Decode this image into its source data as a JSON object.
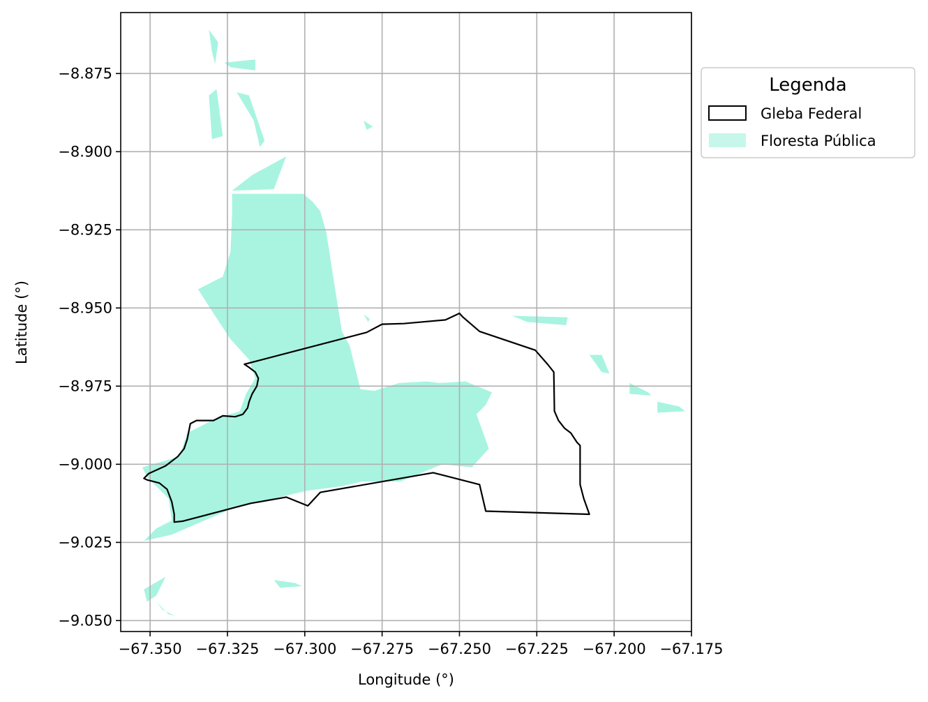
{
  "chart_data": {
    "type": "map",
    "xlabel": "Longitude (°)",
    "ylabel": "Latitude (°)",
    "xlim": [
      -67.3595,
      -67.175
    ],
    "ylim": [
      -9.0535,
      -8.8555
    ],
    "xticks": [
      -67.35,
      -67.325,
      -67.3,
      -67.275,
      -67.25,
      -67.225,
      -67.2,
      -67.175
    ],
    "xtick_labels": [
      "−67.350",
      "−67.325",
      "−67.300",
      "−67.275",
      "−67.250",
      "−67.225",
      "−67.200",
      "−67.175"
    ],
    "yticks": [
      -8.875,
      -8.9,
      -8.925,
      -8.95,
      -8.975,
      -9.0,
      -9.025,
      -9.05
    ],
    "ytick_labels": [
      "−8.875",
      "−8.900",
      "−8.925",
      "−8.950",
      "−8.975",
      "−9.000",
      "−9.025",
      "−9.050"
    ],
    "grid": true,
    "legend": {
      "title": "Legenda",
      "placement": "outside-top-right",
      "items": [
        {
          "label": "Gleba Federal",
          "style": "outline",
          "color": "#000000"
        },
        {
          "label": "Floresta Pública",
          "style": "fill",
          "color": "#a8f4e0"
        }
      ]
    },
    "colors": {
      "forest": "#a8f4e0",
      "forest_legend": "#c7f7ea",
      "boundary": "#000000"
    },
    "layers": {
      "gleba_federal": [
        [
          -67.3295,
          -8.986
        ],
        [
          -67.3265,
          -8.9845
        ],
        [
          -67.3225,
          -8.9848
        ],
        [
          -67.32,
          -8.984
        ],
        [
          -67.3185,
          -8.982
        ],
        [
          -67.318,
          -8.98
        ],
        [
          -67.317,
          -8.9775
        ],
        [
          -67.3155,
          -8.975
        ],
        [
          -67.315,
          -8.9725
        ],
        [
          -67.316,
          -8.9705
        ],
        [
          -67.318,
          -8.969
        ],
        [
          -67.3195,
          -8.968
        ],
        [
          -67.28,
          -8.9578
        ],
        [
          -67.275,
          -8.9552
        ],
        [
          -67.268,
          -8.955
        ],
        [
          -67.2545,
          -8.9538
        ],
        [
          -67.25,
          -8.9517
        ],
        [
          -67.249,
          -8.9528
        ],
        [
          -67.2435,
          -8.9575
        ],
        [
          -67.2255,
          -8.9635
        ],
        [
          -67.2215,
          -8.968
        ],
        [
          -67.2195,
          -8.9705
        ],
        [
          -67.2193,
          -8.983
        ],
        [
          -67.218,
          -8.986
        ],
        [
          -67.216,
          -8.9885
        ],
        [
          -67.214,
          -8.99
        ],
        [
          -67.212,
          -8.993
        ],
        [
          -67.211,
          -8.994
        ],
        [
          -67.211,
          -9.0065
        ],
        [
          -67.2098,
          -9.011
        ],
        [
          -67.208,
          -9.016
        ],
        [
          -67.2415,
          -9.015
        ],
        [
          -67.2435,
          -9.0065
        ],
        [
          -67.2585,
          -9.0027
        ],
        [
          -67.295,
          -9.009
        ],
        [
          -67.299,
          -9.0133
        ],
        [
          -67.306,
          -9.0105
        ],
        [
          -67.3175,
          -9.0125
        ],
        [
          -67.3395,
          -9.0182
        ],
        [
          -67.3422,
          -9.0185
        ],
        [
          -67.3422,
          -9.016
        ],
        [
          -67.343,
          -9.012
        ],
        [
          -67.3445,
          -9.008
        ],
        [
          -67.347,
          -9.006
        ],
        [
          -67.351,
          -9.005
        ],
        [
          -67.352,
          -9.0045
        ],
        [
          -67.3505,
          -9.003
        ],
        [
          -67.345,
          -9.0005
        ],
        [
          -67.341,
          -8.9975
        ],
        [
          -67.339,
          -8.995
        ],
        [
          -67.338,
          -8.992
        ],
        [
          -67.337,
          -8.987
        ],
        [
          -67.335,
          -8.986
        ]
      ],
      "floresta_publica": [
        [
          [
            -67.3235,
            -8.9135
          ],
          [
            -67.3005,
            -8.9135
          ],
          [
            -67.2975,
            -8.916
          ],
          [
            -67.295,
            -8.919
          ],
          [
            -67.293,
            -8.926
          ],
          [
            -67.2905,
            -8.942
          ],
          [
            -67.288,
            -8.9575
          ],
          [
            -67.2855,
            -8.962
          ],
          [
            -67.284,
            -8.968
          ],
          [
            -67.282,
            -8.976
          ],
          [
            -67.2775,
            -8.9765
          ],
          [
            -67.2695,
            -8.974
          ],
          [
            -67.2605,
            -8.9735
          ],
          [
            -67.2565,
            -8.974
          ],
          [
            -67.248,
            -8.9735
          ],
          [
            -67.2395,
            -8.977
          ],
          [
            -67.2415,
            -8.981
          ],
          [
            -67.2445,
            -8.984
          ],
          [
            -67.2405,
            -8.995
          ],
          [
            -67.246,
            -9.001
          ],
          [
            -67.2555,
            -9.0
          ],
          [
            -67.269,
            -9.0055
          ],
          [
            -67.2815,
            -9.0055
          ],
          [
            -67.288,
            -9.007
          ],
          [
            -67.2995,
            -9.0085
          ],
          [
            -67.308,
            -9.0105
          ],
          [
            -67.323,
            -9.014
          ],
          [
            -67.343,
            -9.0225
          ],
          [
            -67.352,
            -9.0245
          ],
          [
            -67.348,
            -9.0205
          ],
          [
            -67.343,
            -9.018
          ],
          [
            -67.344,
            -9.011
          ],
          [
            -67.351,
            -9.004
          ],
          [
            -67.3525,
            -9.001
          ],
          [
            -67.3405,
            -8.9975
          ],
          [
            -67.338,
            -8.99
          ],
          [
            -67.329,
            -8.9855
          ],
          [
            -67.321,
            -8.983
          ],
          [
            -67.319,
            -8.9775
          ],
          [
            -67.316,
            -8.9725
          ],
          [
            -67.318,
            -8.9665
          ],
          [
            -67.324,
            -8.96
          ],
          [
            -67.329,
            -8.9525
          ],
          [
            -67.3345,
            -8.944
          ],
          [
            -67.3265,
            -8.94
          ],
          [
            -67.324,
            -8.932
          ],
          [
            -67.3235,
            -8.92
          ]
        ],
        [
          [
            -67.3235,
            -8.9125
          ],
          [
            -67.317,
            -8.9075
          ],
          [
            -67.306,
            -8.9015
          ],
          [
            -67.31,
            -8.912
          ]
        ],
        [
          [
            -67.331,
            -8.882
          ],
          [
            -67.3285,
            -8.88
          ],
          [
            -67.3265,
            -8.895
          ],
          [
            -67.33,
            -8.896
          ]
        ],
        [
          [
            -67.322,
            -8.881
          ],
          [
            -67.318,
            -8.882
          ],
          [
            -67.313,
            -8.8965
          ],
          [
            -67.3145,
            -8.8985
          ],
          [
            -67.3165,
            -8.89
          ]
        ],
        [
          [
            -67.326,
            -8.8715
          ],
          [
            -67.324,
            -8.873
          ],
          [
            -67.316,
            -8.874
          ],
          [
            -67.316,
            -8.8705
          ]
        ],
        [
          [
            -67.331,
            -8.861
          ],
          [
            -67.328,
            -8.865
          ],
          [
            -67.329,
            -8.872
          ],
          [
            -67.33,
            -8.868
          ]
        ],
        [
          [
            -67.281,
            -8.89
          ],
          [
            -67.278,
            -8.892
          ],
          [
            -67.28,
            -8.893
          ]
        ],
        [
          [
            -67.281,
            -8.952
          ],
          [
            -67.279,
            -8.9535
          ],
          [
            -67.2795,
            -8.9545
          ]
        ],
        [
          [
            -67.233,
            -8.9525
          ],
          [
            -67.215,
            -8.953
          ],
          [
            -67.2155,
            -8.9555
          ],
          [
            -67.228,
            -8.9545
          ]
        ],
        [
          [
            -67.208,
            -8.965
          ],
          [
            -67.204,
            -8.9705
          ],
          [
            -67.2015,
            -8.971
          ],
          [
            -67.204,
            -8.965
          ]
        ],
        [
          [
            -67.195,
            -8.974
          ],
          [
            -67.189,
            -8.977
          ],
          [
            -67.188,
            -8.978
          ],
          [
            -67.195,
            -8.9775
          ]
        ],
        [
          [
            -67.186,
            -8.98
          ],
          [
            -67.179,
            -8.9815
          ],
          [
            -67.177,
            -8.983
          ],
          [
            -67.186,
            -8.9835
          ]
        ],
        [
          [
            -67.352,
            -9.04
          ],
          [
            -67.351,
            -9.044
          ],
          [
            -67.348,
            -9.042
          ],
          [
            -67.345,
            -9.036
          ]
        ],
        [
          [
            -67.348,
            -9.044
          ],
          [
            -67.344,
            -9.048
          ],
          [
            -67.342,
            -9.0485
          ],
          [
            -67.346,
            -9.0465
          ]
        ],
        [
          [
            -67.31,
            -9.037
          ],
          [
            -67.303,
            -9.038
          ],
          [
            -67.301,
            -9.039
          ],
          [
            -67.308,
            -9.0395
          ]
        ]
      ]
    }
  }
}
